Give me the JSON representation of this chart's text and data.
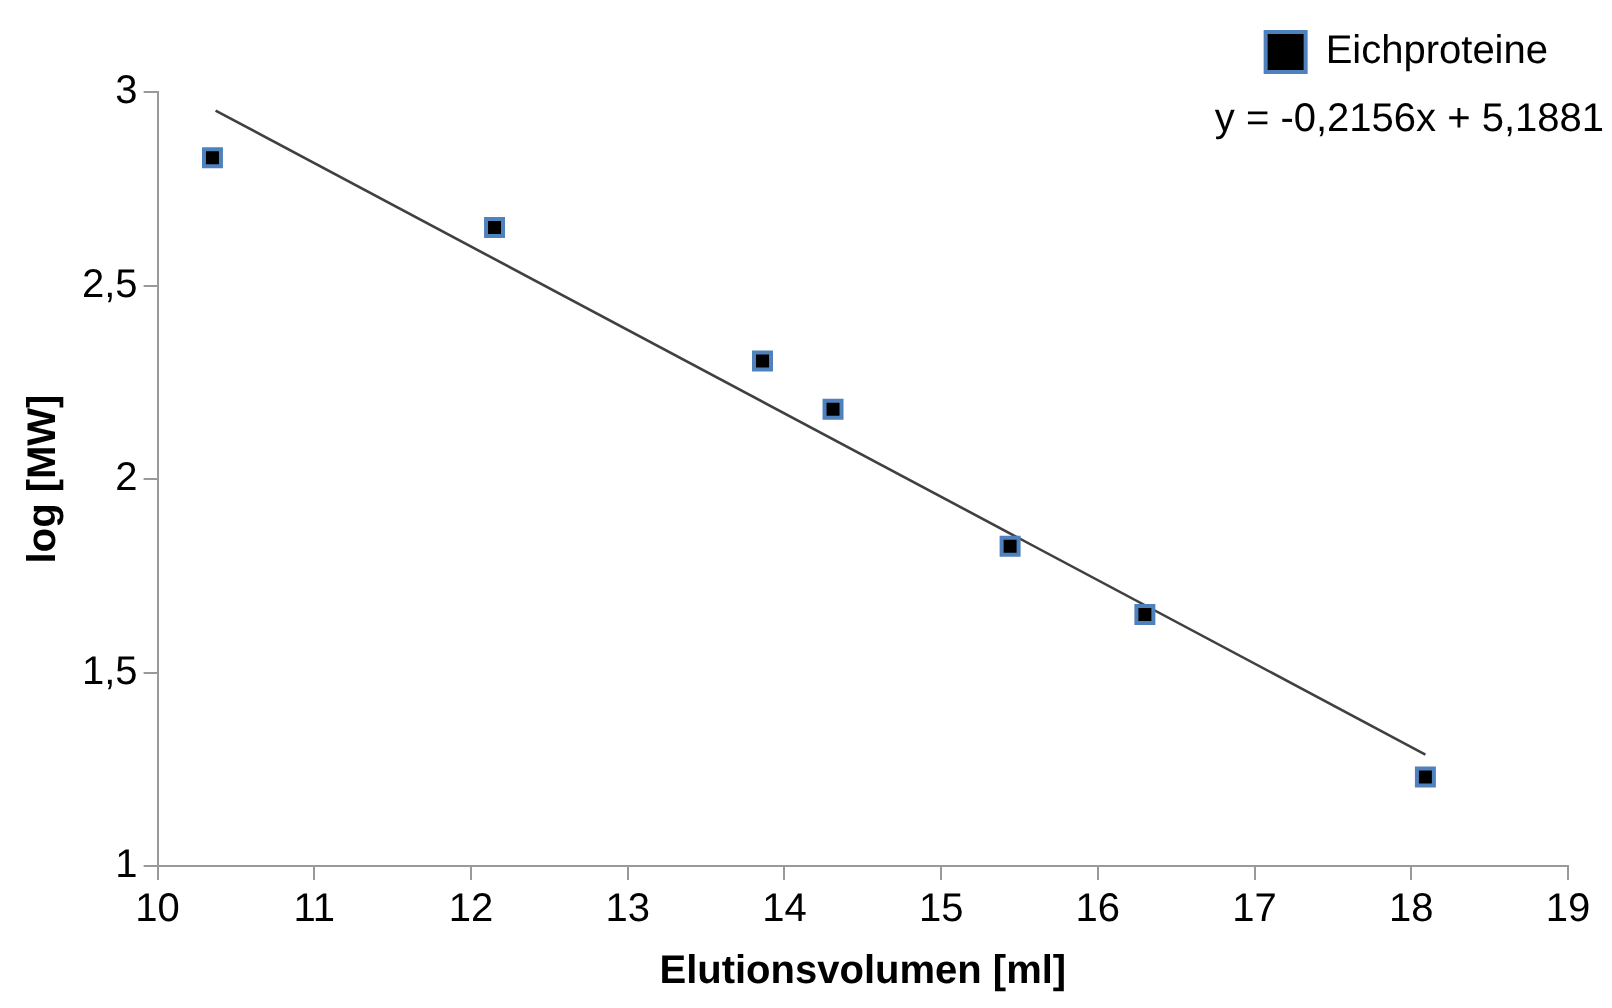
{
  "chart_data": {
    "type": "scatter",
    "xlabel": "Elutionsvolumen [ml]",
    "ylabel": "log [MW]",
    "series": [
      {
        "name": "Eichproteine",
        "type": "scatter",
        "color": "#000000",
        "x": [
          10.35,
          12.15,
          13.86,
          14.31,
          15.44,
          16.3,
          18.09
        ],
        "values": [
          2.83,
          2.65,
          2.305,
          2.18,
          1.826,
          1.65,
          1.23
        ]
      },
      {
        "type": "line",
        "marker": "none",
        "color": "#404040",
        "x": [
          10.37,
          18.09
        ],
        "values": [
          2.952,
          1.288
        ]
      }
    ],
    "xlim": [
      10,
      19
    ],
    "xticks": [
      10,
      11,
      12,
      13,
      14,
      15,
      16,
      17,
      18,
      19
    ],
    "ylim": [
      1,
      3
    ],
    "yticks": [
      1,
      {
        "value": 1.5,
        "label": "1,5"
      },
      2,
      {
        "value": 2.5,
        "label": "2,5"
      },
      3
    ],
    "annotations": [
      "y = -0,2156x + 5,1881"
    ],
    "legend": "top right",
    "marker": "square",
    "grid": false
  }
}
